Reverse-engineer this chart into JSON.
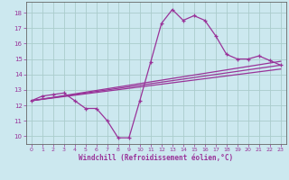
{
  "background_color": "#cce8ef",
  "grid_color": "#aacccc",
  "line_color": "#993399",
  "marker": "+",
  "xlabel": "Windchill (Refroidissement éolien,°C)",
  "xlim": [
    -0.5,
    23.5
  ],
  "ylim": [
    9.5,
    18.7
  ],
  "yticks": [
    10,
    11,
    12,
    13,
    14,
    15,
    16,
    17,
    18
  ],
  "xticks": [
    0,
    1,
    2,
    3,
    4,
    5,
    6,
    7,
    8,
    9,
    10,
    11,
    12,
    13,
    14,
    15,
    16,
    17,
    18,
    19,
    20,
    21,
    22,
    23
  ],
  "main_x": [
    0,
    1,
    2,
    3,
    4,
    5,
    6,
    7,
    8,
    9,
    10,
    11,
    12,
    13,
    14,
    15,
    16,
    17,
    18,
    19,
    20,
    21,
    22,
    23
  ],
  "main_y": [
    12.3,
    12.6,
    12.7,
    12.8,
    12.3,
    11.8,
    11.8,
    11.0,
    9.9,
    9.9,
    12.3,
    14.8,
    17.3,
    18.2,
    17.5,
    17.8,
    17.5,
    16.5,
    15.3,
    15.0,
    15.0,
    15.2,
    14.9,
    14.6
  ],
  "line1_x": [
    0,
    23
  ],
  "line1_y": [
    12.3,
    14.6
  ],
  "line2_x": [
    0,
    23
  ],
  "line2_y": [
    12.3,
    14.35
  ],
  "line3_x": [
    0,
    23
  ],
  "line3_y": [
    12.3,
    14.85
  ]
}
